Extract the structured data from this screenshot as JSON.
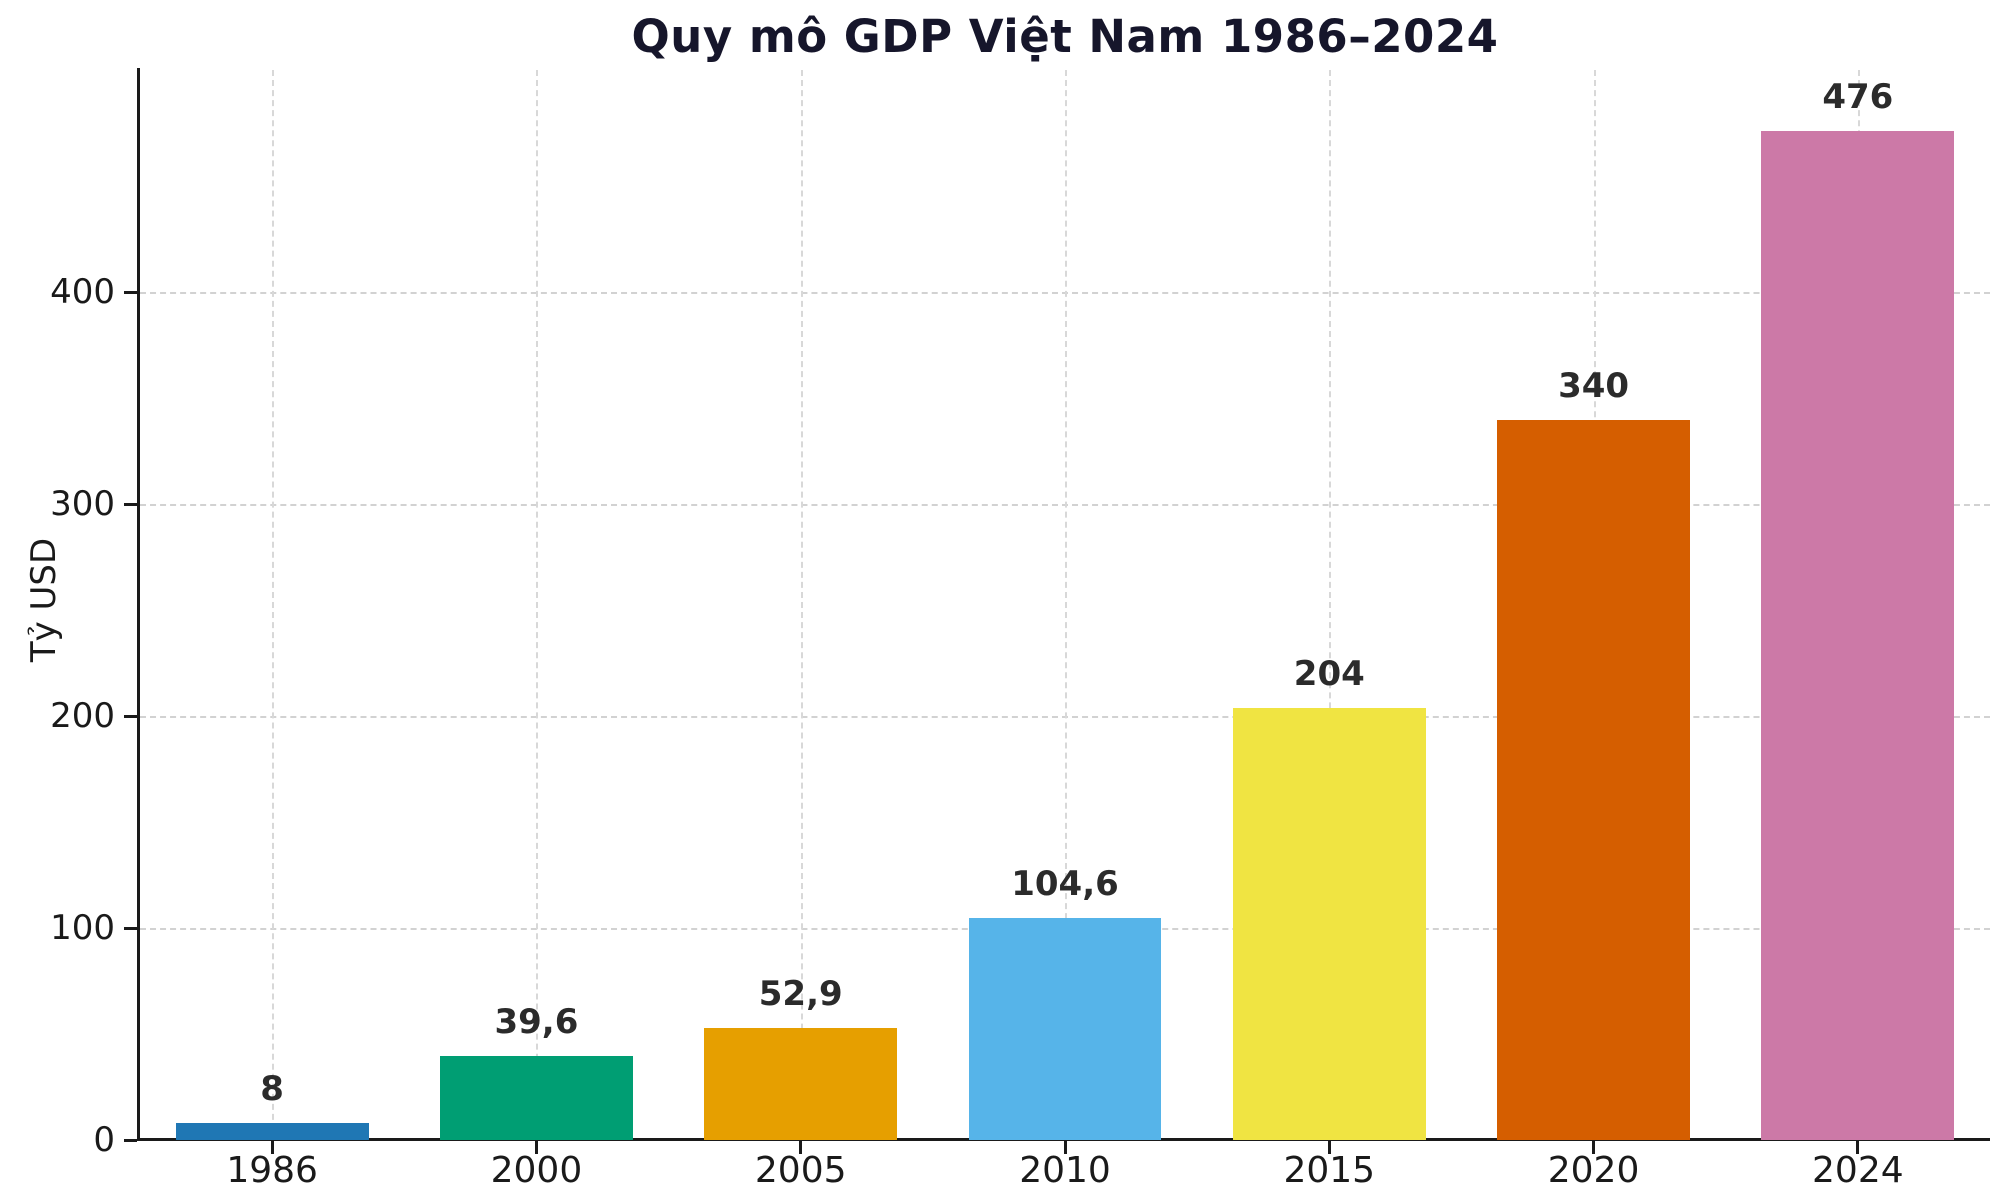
{
  "title": "Quy mô GDP Việt Nam 1986–2024",
  "y_axis_label": "Tỷ USD",
  "chart_data": {
    "type": "bar",
    "title": "Quy mô GDP Việt Nam 1986–2024",
    "xlabel": "",
    "ylabel": "Tỷ USD",
    "categories": [
      "1986",
      "2000",
      "2005",
      "2010",
      "2015",
      "2020",
      "2024"
    ],
    "values": [
      8,
      39.6,
      52.9,
      104.6,
      204,
      340,
      476
    ],
    "value_labels": [
      "8",
      "39,6",
      "52,9",
      "104,6",
      "204",
      "340",
      "476"
    ],
    "bar_colors": [
      "#1f77b4",
      "#009e73",
      "#e69f00",
      "#56b4e9",
      "#f0e442",
      "#d55e00",
      "#cc79a7"
    ],
    "yticks": [
      0,
      100,
      200,
      300,
      400
    ],
    "ylim": [
      0,
      505
    ],
    "grid": true,
    "grid_style": "dashed",
    "legend": "none",
    "units": "Tỷ USD (billion USD)"
  }
}
